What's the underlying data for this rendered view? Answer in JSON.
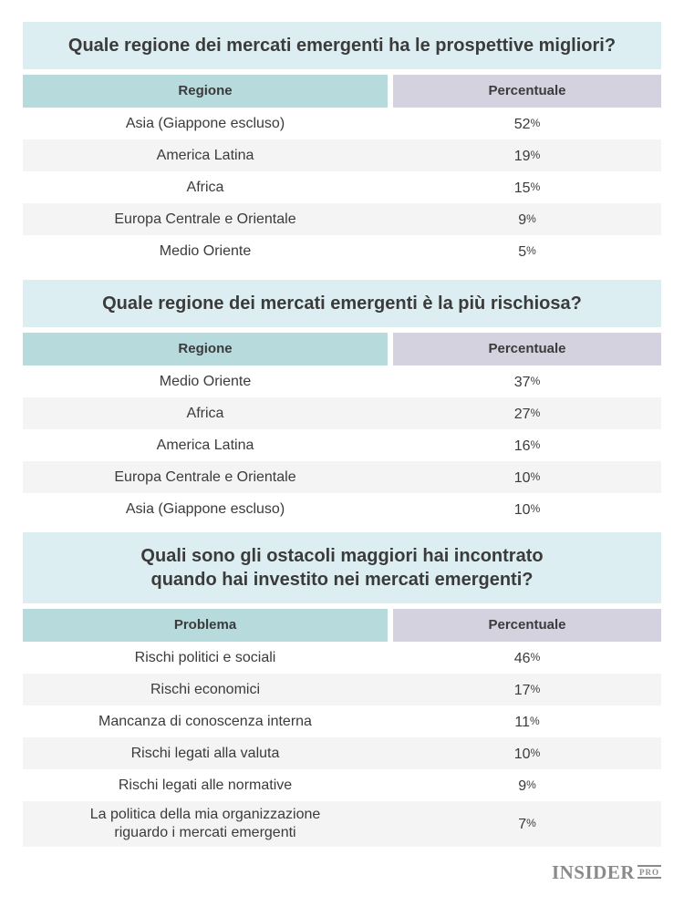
{
  "colors": {
    "title_bar_bg": "#ddeef2",
    "region_header_bg": "#b7dbdc",
    "percent_header_bg": "#d5d2e0",
    "alt_row_bg": "#f4f4f4",
    "text": "#3b3b3b",
    "logo_gray": "#8a8a8a"
  },
  "tables": [
    {
      "title_line1": "Quale regione dei mercati emergenti ha le prospettive migliori?",
      "col1_header": "Regione",
      "col2_header": "Percentuale",
      "rows": [
        {
          "label": "Asia (Giappone escluso)",
          "value": "52%"
        },
        {
          "label": "America Latina",
          "value": "19%"
        },
        {
          "label": "Africa",
          "value": "15%"
        },
        {
          "label": "Europa Centrale e Orientale",
          "value": "9%"
        },
        {
          "label": "Medio Oriente",
          "value": "5%"
        }
      ]
    },
    {
      "title_line1": "Quale regione dei mercati emergenti è la più rischiosa?",
      "col1_header": "Regione",
      "col2_header": "Percentuale",
      "rows": [
        {
          "label": "Medio Oriente",
          "value": "37%"
        },
        {
          "label": "Africa",
          "value": "27%"
        },
        {
          "label": "America Latina",
          "value": "16%"
        },
        {
          "label": "Europa Centrale e Orientale",
          "value": "10%"
        },
        {
          "label": "Asia (Giappone escluso)",
          "value": "10%"
        }
      ]
    },
    {
      "title_line1": "Quali sono gli ostacoli maggiori hai incontrato",
      "title_line2": "quando hai investito nei mercati emergenti?",
      "col1_header": "Problema",
      "col2_header": "Percentuale",
      "rows": [
        {
          "label": "Rischi politici e sociali",
          "value": "46%"
        },
        {
          "label": "Rischi economici",
          "value": "17%"
        },
        {
          "label": "Mancanza di conoscenza interna",
          "value": "11%"
        },
        {
          "label": "Rischi legati alla valuta",
          "value": "10%"
        },
        {
          "label": "Rischi legati alle normative",
          "value": "9%"
        },
        {
          "label": "La politica della mia organizzazione riguardo i mercati emergenti",
          "value": "7%"
        }
      ]
    }
  ],
  "footer": {
    "logo_main": "INSIDER",
    "logo_sub": "PRO"
  },
  "chart_data": [
    {
      "type": "table",
      "title": "Quale regione dei mercati emergenti ha le prospettive migliori?",
      "columns": [
        "Regione",
        "Percentuale"
      ],
      "categories": [
        "Asia (Giappone escluso)",
        "America Latina",
        "Africa",
        "Europa Centrale e Orientale",
        "Medio Oriente"
      ],
      "values": [
        52,
        19,
        15,
        9,
        5
      ],
      "unit": "%"
    },
    {
      "type": "table",
      "title": "Quale regione dei mercati emergenti è la più rischiosa?",
      "columns": [
        "Regione",
        "Percentuale"
      ],
      "categories": [
        "Medio Oriente",
        "Africa",
        "America Latina",
        "Europa Centrale e Orientale",
        "Asia (Giappone escluso)"
      ],
      "values": [
        37,
        27,
        16,
        10,
        10
      ],
      "unit": "%"
    },
    {
      "type": "table",
      "title": "Quali sono gli ostacoli maggiori hai incontrato quando hai investito nei mercati emergenti?",
      "columns": [
        "Problema",
        "Percentuale"
      ],
      "categories": [
        "Rischi politici e sociali",
        "Rischi economici",
        "Mancanza di conoscenza interna",
        "Rischi legati alla valuta",
        "Rischi legati alle normative",
        "La politica della mia organizzazione riguardo i mercati emergenti"
      ],
      "values": [
        46,
        17,
        11,
        10,
        9,
        7
      ],
      "unit": "%"
    }
  ]
}
